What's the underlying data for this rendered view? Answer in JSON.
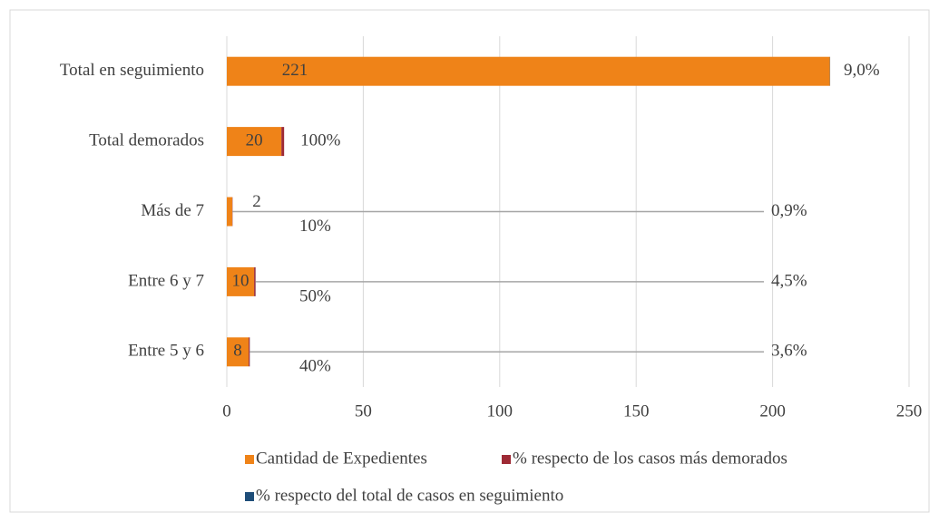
{
  "chart_data": {
    "type": "bar",
    "orientation": "horizontal",
    "stacked": true,
    "categories": [
      "Total en seguimiento",
      "Total demorados",
      "Más de 7",
      "Entre 6 y 7",
      "Entre 5 y 6"
    ],
    "series": [
      {
        "name": "Cantidad de Expedientes",
        "color": "#ef8318",
        "values": [
          221,
          20,
          2,
          10,
          8
        ]
      },
      {
        "name": "% respecto de los casos más demorados",
        "color": "#9e2a35",
        "values": [
          null,
          1,
          0.1,
          0.5,
          0.4
        ],
        "value_labels": [
          null,
          "100%",
          "10%",
          "50%",
          "40%"
        ]
      },
      {
        "name": "% respecto del total de casos en seguimiento",
        "color": "#1f4e79",
        "values": [
          0.09,
          null,
          0.009,
          0.045,
          0.036
        ],
        "value_labels": [
          "9,0%",
          null,
          "0,9%",
          "4,5%",
          "3,6%"
        ]
      }
    ],
    "xlim": [
      0,
      250
    ],
    "xticks": [
      0,
      50,
      100,
      150,
      200,
      250
    ],
    "grid": true,
    "legend": "bottom"
  }
}
